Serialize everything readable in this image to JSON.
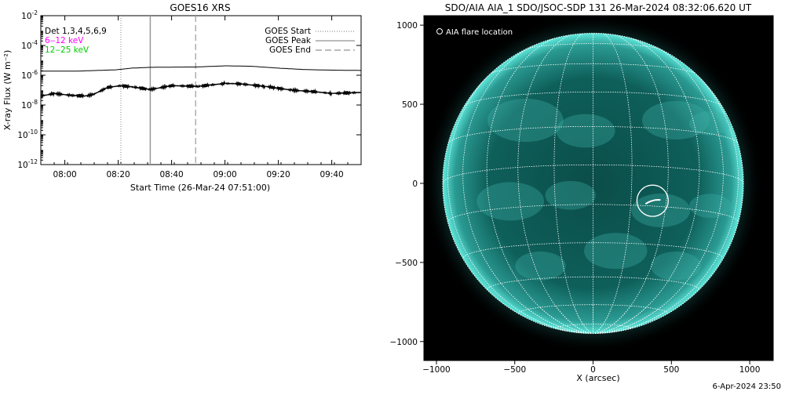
{
  "colors": {
    "page_bg": "#ffffff",
    "axis": "#000000",
    "low_channel": "#ff00ff",
    "high_channel": "#00cc00",
    "sun_disk": "#0e5f5a",
    "sun_limb": "#5fe8dc",
    "grid": "#ffffff",
    "image_bg": "#000000"
  },
  "footer_timestamp": "6-Apr-2024 23:50",
  "chart_data": [
    {
      "type": "line",
      "title": "GOES16 XRS",
      "xlabel": "Start Time (26-Mar-24 07:51:00)",
      "ylabel": "X-ray Flux (W m⁻²)",
      "log_y": true,
      "ylim": [
        1e-12,
        0.01
      ],
      "xlim": [
        "07:51",
        "09:51"
      ],
      "x_tick_labels": [
        "08:00",
        "08:20",
        "08:40",
        "09:00",
        "09:20",
        "09:40"
      ],
      "y_tick_labels": [
        {
          "base": "10",
          "exp": "-2"
        },
        {
          "base": "10",
          "exp": "-4"
        },
        {
          "base": "10",
          "exp": "-6"
        },
        {
          "base": "10",
          "exp": "-8"
        },
        {
          "base": "10",
          "exp": "-10"
        },
        {
          "base": "10",
          "exp": "-12"
        }
      ],
      "detector_label": "Det 1,3,4,5,6,9",
      "channel_labels": [
        {
          "text": "6‒12 keV",
          "color": "#ff00ff"
        },
        {
          "text": "12‒25 keV",
          "color": "#00cc00"
        }
      ],
      "legend": {
        "position": "top-right",
        "items": [
          {
            "label": "GOES Start",
            "style": "dotted"
          },
          {
            "label": "GOES Peak",
            "style": "solid"
          },
          {
            "label": "GOES End",
            "style": "dashed"
          }
        ]
      },
      "event_lines": [
        {
          "name": "GOES Start",
          "x": "08:21",
          "style": "dotted"
        },
        {
          "name": "GOES Peak",
          "x": "08:32",
          "style": "solid"
        },
        {
          "name": "GOES End",
          "x": "08:49",
          "style": "dashed"
        }
      ],
      "series": [
        {
          "style": "thin",
          "x": [
            "07:51",
            "08:05",
            "08:12",
            "08:19",
            "08:25",
            "08:32",
            "08:40",
            "08:50",
            "09:00",
            "09:10",
            "09:20",
            "09:30",
            "09:40",
            "09:51"
          ],
          "y": [
            1.9e-06,
            1.9e-06,
            2.1e-06,
            2.3e-06,
            3e-06,
            3.4e-06,
            3.5e-06,
            3.6e-06,
            4.3e-06,
            4e-06,
            3e-06,
            2.4e-06,
            2.2e-06,
            2.1e-06
          ]
        },
        {
          "style": "thick",
          "x": [
            "07:51",
            "07:56",
            "08:02",
            "08:08",
            "08:11",
            "08:16",
            "08:21",
            "08:26",
            "08:32",
            "08:40",
            "08:50",
            "09:00",
            "09:05",
            "09:15",
            "09:25",
            "09:33",
            "09:40",
            "09:51"
          ],
          "y": [
            4e-08,
            6e-08,
            4.5e-08,
            4e-08,
            5.5e-08,
            1.5e-07,
            2e-07,
            1.6e-07,
            1.1e-07,
            2e-07,
            1.8e-07,
            2.8e-07,
            2.7e-07,
            1.8e-07,
            1e-07,
            8e-08,
            6e-08,
            7e-08
          ]
        }
      ]
    },
    {
      "type": "image",
      "title": "SDO/AIA AIA_1 SDO/JSOC-SDP 131 26-Mar-2024 08:32:06.620 UT",
      "xlabel": "X (arcsec)",
      "ylabel": "",
      "xlim": [
        -1080,
        1150
      ],
      "ylim": [
        -1120,
        1060
      ],
      "x_ticks": [
        -1000,
        -500,
        0,
        500,
        1000
      ],
      "x_tick_labels": [
        "−1000",
        "−500",
        "0",
        "500",
        "1000"
      ],
      "y_ticks": [
        1000,
        500,
        0,
        -500,
        -1000
      ],
      "y_tick_labels": [
        "1000",
        "500",
        "0",
        "−500",
        "−1000"
      ],
      "legend_label": "AIA flare location",
      "solar_radius_arcsec": 960,
      "flare_location": {
        "x": 380,
        "y": -110,
        "radius_arcsec": 100
      }
    }
  ]
}
